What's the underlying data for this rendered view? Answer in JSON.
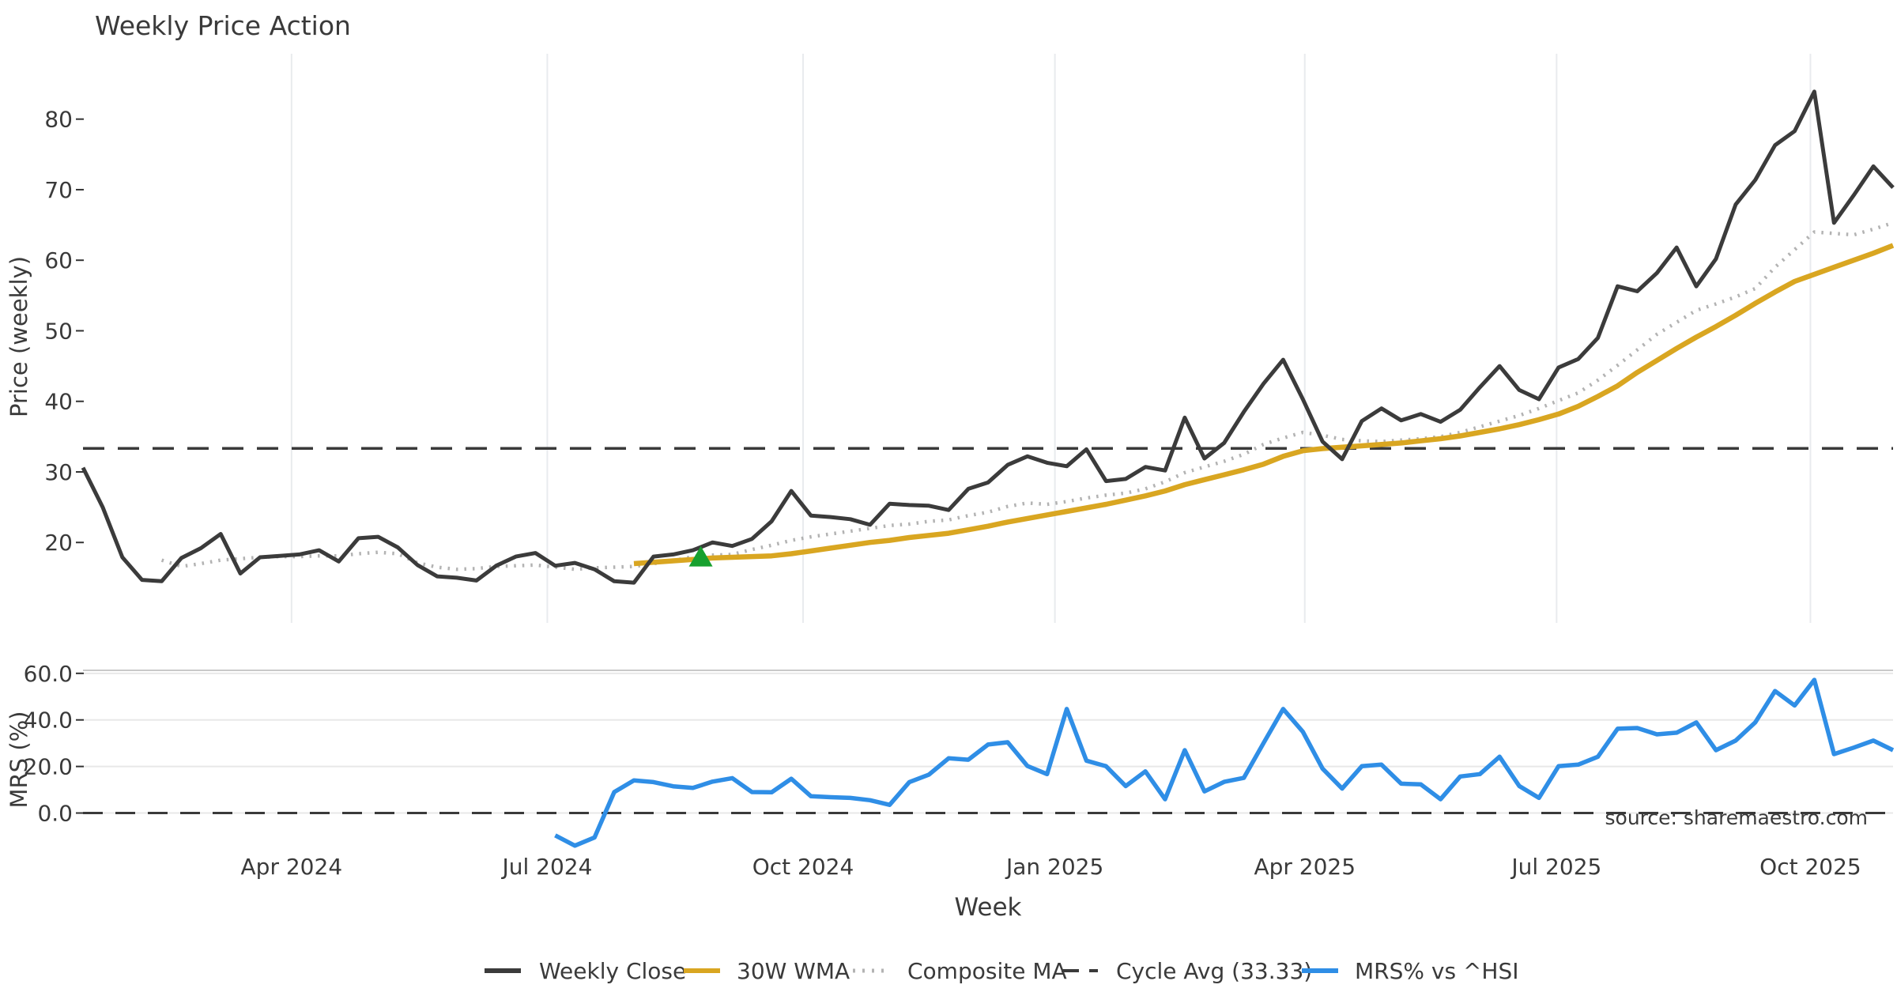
{
  "title": "Weekly Price Action",
  "xlabel": "Week",
  "source_note": "source: sharemaestro.com",
  "colors": {
    "close": "#3b3b3b",
    "wma": "#d9a621",
    "composite": "#b3b3b3",
    "cycle": "#3a3a3a",
    "mrs": "#2f8ee6",
    "marker": "#17a02e",
    "vgrid": "#e9ebee",
    "hgrid": "#e8e8e8",
    "spine": "#c9c9c9",
    "text": "#3a3a3a",
    "title_color": "#333333",
    "source_color": "#8d8d8d"
  },
  "x_axis": {
    "tick_labels": [
      "Apr 2024",
      "Jul 2024",
      "Oct 2024",
      "Jan 2025",
      "Apr 2025",
      "Jul 2025",
      "Oct 2025"
    ],
    "tick_weeks": [
      10.6,
      23.6,
      36.6,
      49.4,
      62.1,
      74.9,
      87.8
    ],
    "total_weeks": 92
  },
  "chart_data": [
    {
      "name": "price_panel",
      "type": "line",
      "ylabel": "Price (weekly)",
      "ylim": [
        8.6,
        89.6
      ],
      "yticks": [
        20,
        30,
        40,
        50,
        60,
        70,
        80
      ],
      "grid": "vertical",
      "cycle_avg": 33.33,
      "marker": {
        "shape": "triangle-up",
        "week": 31.4,
        "price": 17.6
      },
      "series": [
        {
          "name": "Weekly Close",
          "start_week": 0,
          "values": [
            30.6,
            25.0,
            17.9,
            14.7,
            14.5,
            17.8,
            19.2,
            21.2,
            15.6,
            17.9,
            18.1,
            18.3,
            18.9,
            17.3,
            20.6,
            20.8,
            19.3,
            16.8,
            15.2,
            15.0,
            14.6,
            16.7,
            18.0,
            18.5,
            16.7,
            17.1,
            16.2,
            14.5,
            14.3,
            18.0,
            18.3,
            18.9,
            20.0,
            19.5,
            20.5,
            23.0,
            27.3,
            23.8,
            23.6,
            23.3,
            22.5,
            25.5,
            25.3,
            25.2,
            24.6,
            27.6,
            28.5,
            31.0,
            32.2,
            31.3,
            30.8,
            33.2,
            28.7,
            29.0,
            30.7,
            30.2,
            37.7,
            31.9,
            34.1,
            38.5,
            42.5,
            45.9,
            40.3,
            34.3,
            31.8,
            37.2,
            39.0,
            37.3,
            38.2,
            37.1,
            38.8,
            42.0,
            45.0,
            41.6,
            40.3,
            44.8,
            46.0,
            49.0,
            56.3,
            55.6,
            58.2,
            61.8,
            56.3,
            60.2,
            67.9,
            71.4,
            76.3,
            78.3,
            83.9,
            65.3,
            69.2,
            73.3,
            70.3
          ]
        },
        {
          "name": "30W WMA",
          "start_week": 28,
          "values": [
            17.0,
            17.2,
            17.4,
            17.6,
            17.8,
            17.9,
            18.0,
            18.1,
            18.4,
            18.8,
            19.2,
            19.6,
            20.0,
            20.3,
            20.7,
            21.0,
            21.3,
            21.8,
            22.3,
            22.9,
            23.4,
            23.9,
            24.4,
            24.9,
            25.4,
            26.0,
            26.6,
            27.3,
            28.2,
            28.9,
            29.6,
            30.3,
            31.1,
            32.2,
            33.0,
            33.3,
            33.5,
            33.7,
            33.9,
            34.1,
            34.4,
            34.7,
            35.1,
            35.6,
            36.1,
            36.7,
            37.4,
            38.2,
            39.3,
            40.7,
            42.2,
            44.1,
            45.8,
            47.5,
            49.1,
            50.6,
            52.2,
            53.9,
            55.5,
            57.0,
            58.0,
            59.0,
            60.0,
            61.0,
            62.1
          ]
        },
        {
          "name": "Composite MA",
          "start_week": 4,
          "values": [
            17.5,
            16.6,
            17.0,
            17.5,
            17.7,
            17.9,
            18.0,
            18.0,
            18.1,
            18.1,
            18.4,
            18.6,
            18.4,
            17.1,
            16.5,
            16.2,
            16.3,
            16.6,
            16.7,
            16.8,
            16.5,
            16.2,
            16.4,
            16.5,
            16.6,
            17.0,
            17.4,
            18.0,
            18.2,
            18.3,
            19.0,
            19.6,
            20.3,
            20.8,
            21.2,
            21.6,
            22.0,
            22.4,
            22.6,
            23.0,
            23.2,
            23.8,
            24.3,
            25.1,
            25.6,
            25.4,
            25.8,
            26.3,
            26.7,
            27.0,
            27.6,
            28.6,
            29.9,
            30.7,
            31.5,
            32.5,
            33.9,
            34.8,
            35.6,
            35.2,
            34.6,
            34.4,
            34.3,
            34.5,
            34.7,
            35.0,
            35.6,
            36.4,
            37.2,
            38.0,
            39.0,
            40.1,
            41.2,
            43.0,
            45.1,
            47.3,
            49.5,
            51.2,
            52.9,
            53.8,
            54.8,
            56.0,
            59.0,
            61.5,
            64.0,
            63.8,
            63.6,
            64.4,
            65.3
          ]
        }
      ]
    },
    {
      "name": "mrs_panel",
      "type": "line",
      "ylabel": "MRS (%)",
      "ylim": [
        -16.8,
        61.3
      ],
      "yticks": [
        0,
        20,
        40,
        60
      ],
      "ytick_labels": [
        "0.0",
        "20.0",
        "40.0",
        "60.0"
      ],
      "grid": "horizontal",
      "zero_dashed": true,
      "series": [
        {
          "name": "MRS% vs ^HSI",
          "start_week": 24,
          "values": [
            -9.6,
            -14.0,
            -10.5,
            9.0,
            14.0,
            13.3,
            11.5,
            10.8,
            13.5,
            15.0,
            9.0,
            8.9,
            14.7,
            7.2,
            6.8,
            6.5,
            5.5,
            3.5,
            13.3,
            16.5,
            23.5,
            22.9,
            29.4,
            30.4,
            20.2,
            16.7,
            44.7,
            22.5,
            20.1,
            11.6,
            17.9,
            5.9,
            27.0,
            9.3,
            13.4,
            15.1,
            30.0,
            44.7,
            34.9,
            19.1,
            10.5,
            20.1,
            20.8,
            12.6,
            12.3,
            5.9,
            15.7,
            16.7,
            24.2,
            11.6,
            6.5,
            20.1,
            20.8,
            24.2,
            36.2,
            36.5,
            33.8,
            34.5,
            38.9,
            27.0,
            31.1,
            39.0,
            52.4,
            46.2,
            57.2,
            25.3,
            28.1,
            31.1,
            27.0
          ]
        }
      ]
    }
  ],
  "legend": [
    {
      "label": "Weekly Close",
      "style": "solid",
      "color_key": "close"
    },
    {
      "label": "30W WMA",
      "style": "solid",
      "color_key": "wma"
    },
    {
      "label": "Composite MA",
      "style": "dotted",
      "color_key": "composite"
    },
    {
      "label": "Cycle Avg (33.33)",
      "style": "dashed",
      "color_key": "cycle"
    },
    {
      "label": "MRS% vs ^HSI",
      "style": "solid",
      "color_key": "mrs"
    }
  ]
}
